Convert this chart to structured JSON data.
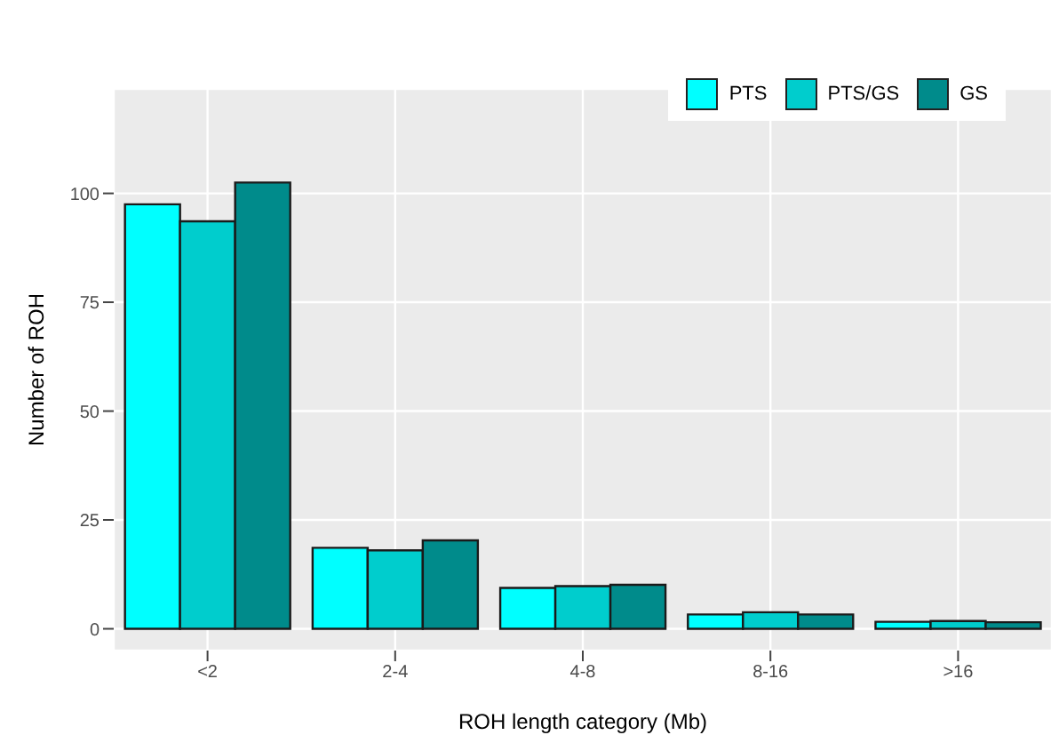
{
  "chart_data": {
    "type": "bar",
    "xlabel": "ROH length category (Mb)",
    "ylabel": "Number of ROH",
    "categories": [
      "<2",
      "2-4",
      "4-8",
      "8-16",
      ">16"
    ],
    "series": [
      {
        "name": "PTS",
        "color": "#00ffff",
        "values": [
          97.5,
          18.6,
          9.4,
          3.3,
          1.6
        ]
      },
      {
        "name": "PTS/GS",
        "color": "#00cdcd",
        "values": [
          93.6,
          18.0,
          9.8,
          3.8,
          1.8
        ]
      },
      {
        "name": "GS",
        "color": "#008b8b",
        "values": [
          102.5,
          20.3,
          10.1,
          3.3,
          1.5
        ]
      }
    ],
    "ylim": [
      -5,
      124
    ],
    "yticks": [
      0,
      25,
      50,
      75,
      100
    ],
    "grid": true,
    "legend": "top right"
  }
}
